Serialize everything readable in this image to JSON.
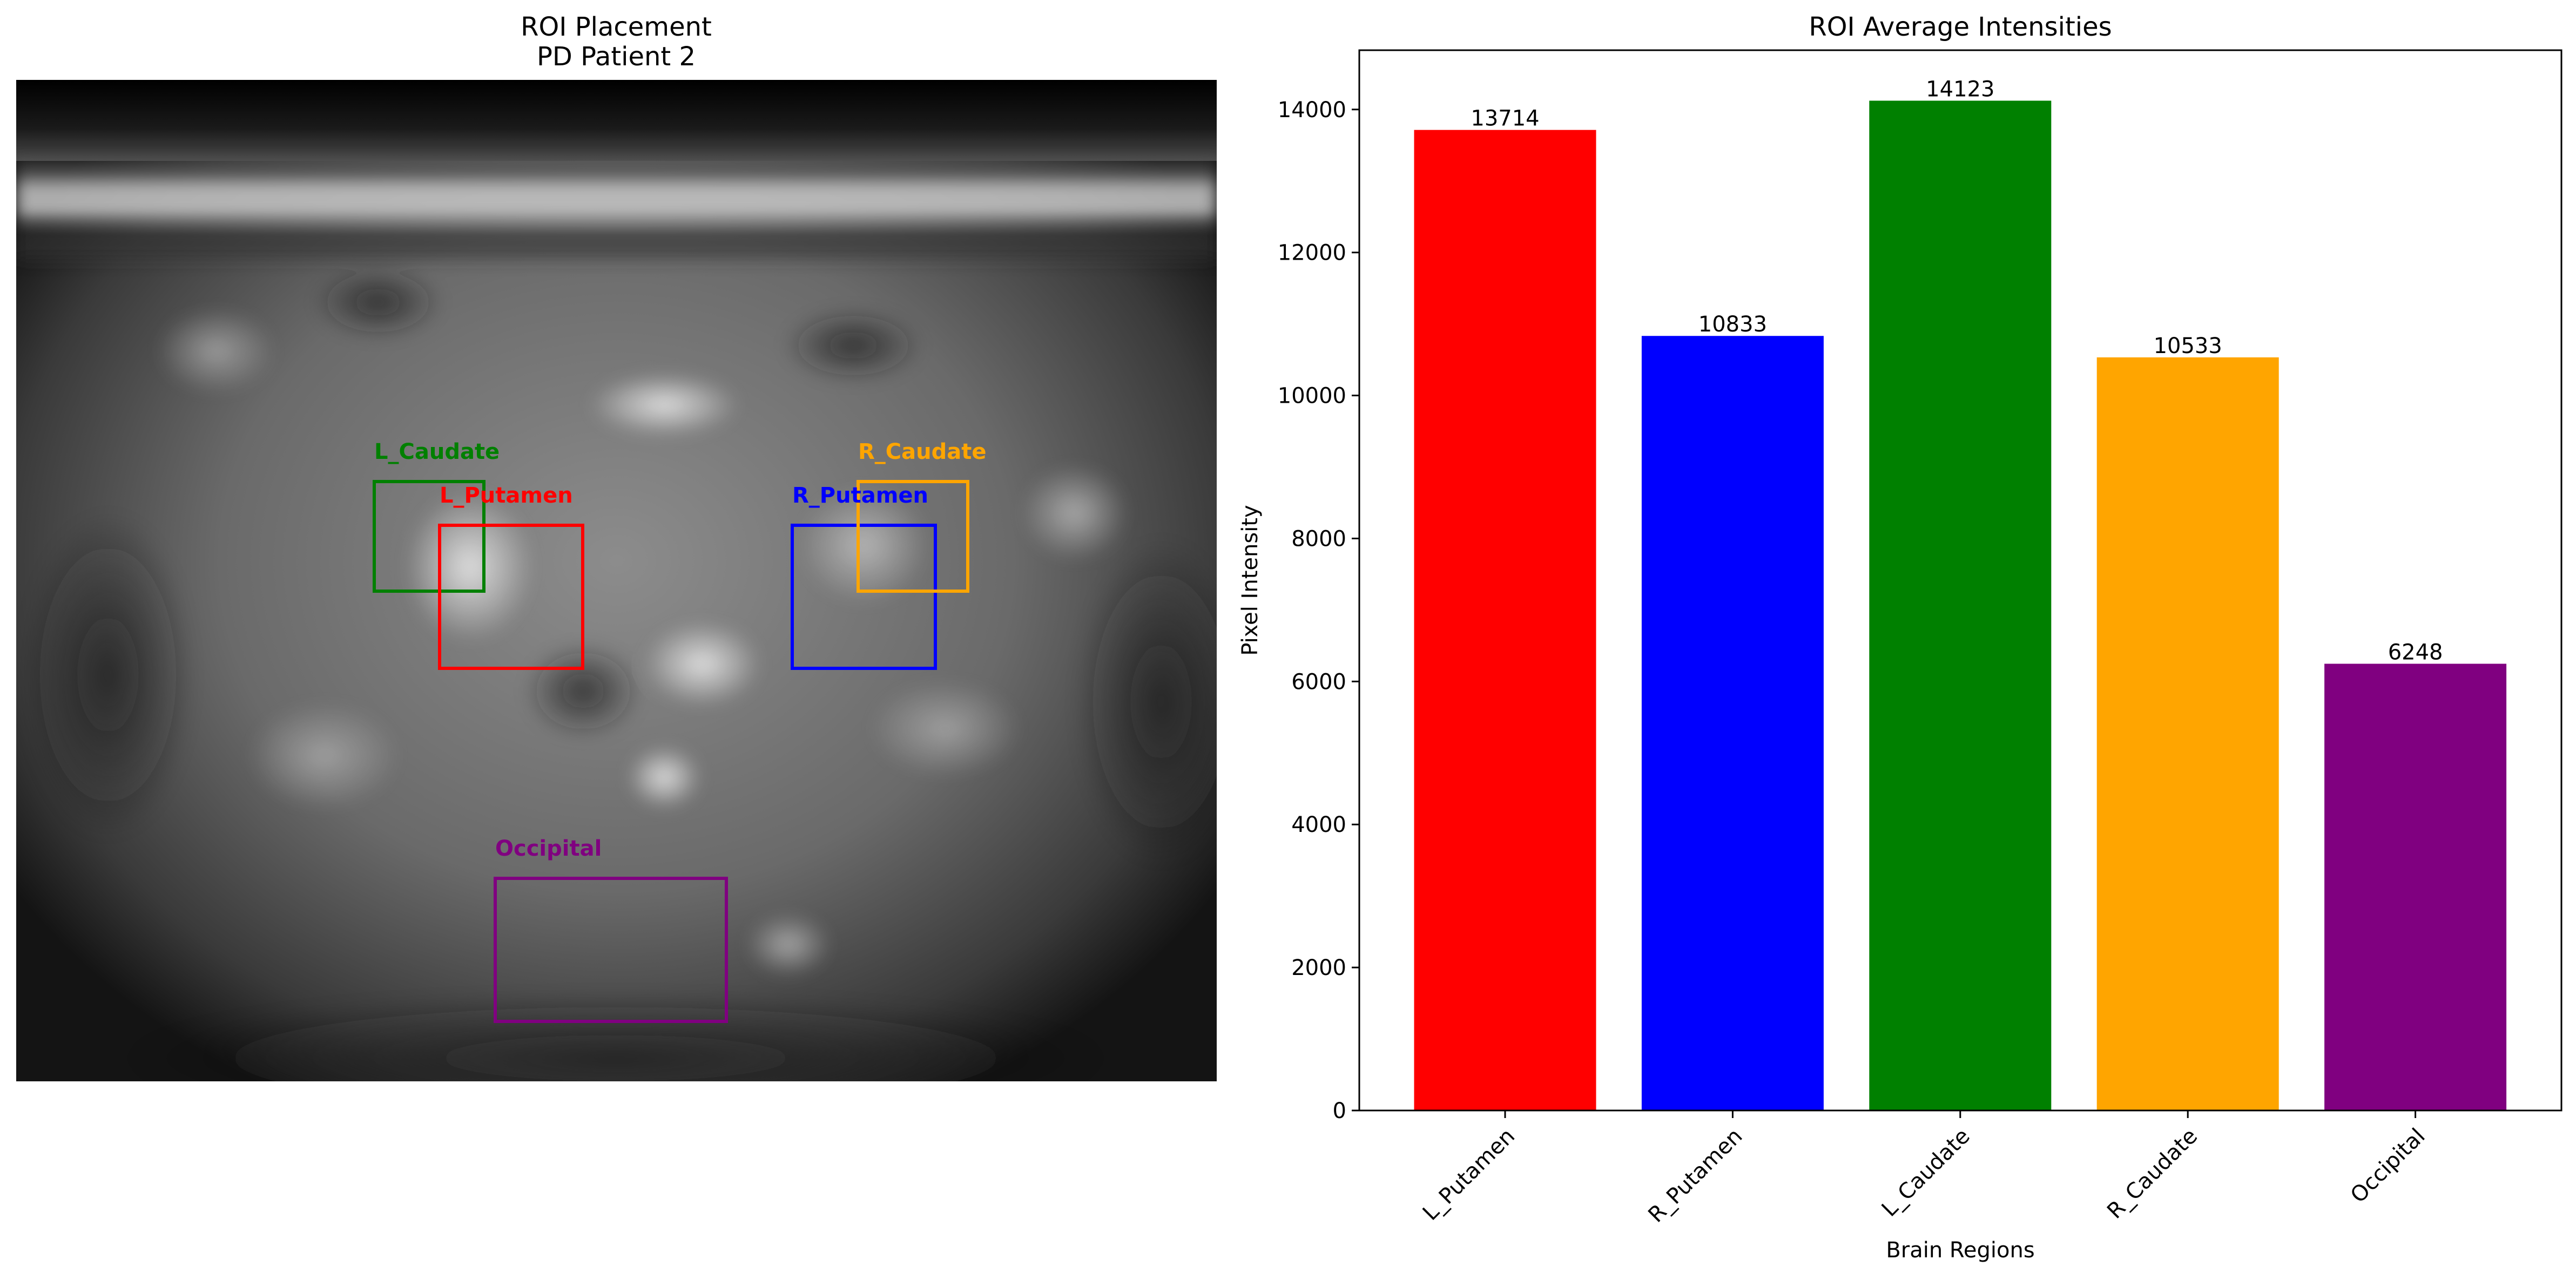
{
  "left_panel": {
    "title_line1": "ROI Placement",
    "title_line2": "PD Patient 2",
    "rois": [
      {
        "name": "L_Caudate",
        "color": "#008000"
      },
      {
        "name": "L_Putamen",
        "color": "#ff0000"
      },
      {
        "name": "R_Putamen",
        "color": "#0000ff"
      },
      {
        "name": "R_Caudate",
        "color": "#ffa500"
      },
      {
        "name": "Occipital",
        "color": "#800080"
      }
    ]
  },
  "chart_data": {
    "type": "bar",
    "title": "ROI Average Intensities",
    "xlabel": "Brain Regions",
    "ylabel": "Pixel Intensity",
    "categories": [
      "L_Putamen",
      "R_Putamen",
      "L_Caudate",
      "R_Caudate",
      "Occipital"
    ],
    "values": [
      13714,
      10833,
      14123,
      10533,
      6248
    ],
    "value_labels": [
      "13714",
      "10833",
      "14123",
      "10533",
      "6248"
    ],
    "colors": [
      "#ff0000",
      "#0000ff",
      "#008000",
      "#ffa500",
      "#800080"
    ],
    "ylim": [
      0,
      14829
    ],
    "yticks": [
      0,
      2000,
      4000,
      6000,
      8000,
      10000,
      12000,
      14000
    ],
    "ytick_labels": [
      "0",
      "2000",
      "4000",
      "6000",
      "8000",
      "10000",
      "12000",
      "14000"
    ],
    "xtick_rotation": 45,
    "grid": false,
    "legend": "none"
  }
}
